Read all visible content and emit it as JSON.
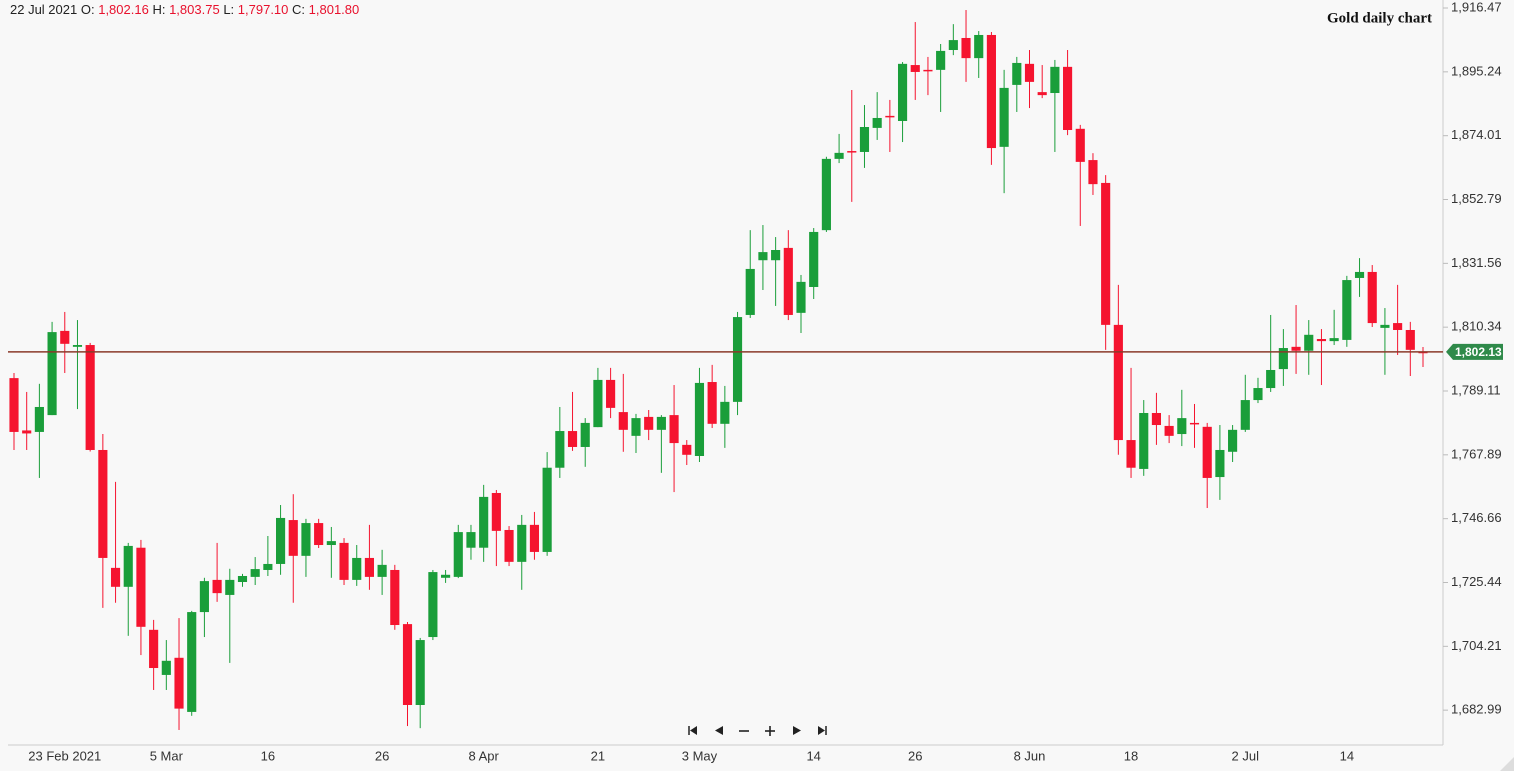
{
  "chart_data": {
    "type": "candlestick",
    "title": "Gold daily chart",
    "header": {
      "date": "22 Jul 2021",
      "fields": [
        {
          "name": "O:",
          "value": "1,802.16"
        },
        {
          "name": "H:",
          "value": "1,803.75"
        },
        {
          "name": "L:",
          "value": "1,797.10"
        },
        {
          "name": "C:",
          "value": "1,801.80"
        }
      ]
    },
    "categories": [
      null,
      null,
      null,
      null,
      "23 Feb 2021",
      null,
      null,
      null,
      null,
      null,
      null,
      null,
      "5 Mar",
      null,
      null,
      null,
      null,
      null,
      null,
      null,
      "16",
      null,
      null,
      null,
      null,
      null,
      null,
      null,
      null,
      "26",
      null,
      null,
      null,
      null,
      null,
      null,
      null,
      "8 Apr",
      null,
      null,
      null,
      null,
      null,
      null,
      null,
      null,
      "21",
      null,
      null,
      null,
      null,
      null,
      null,
      null,
      "3 May",
      null,
      null,
      null,
      null,
      null,
      null,
      null,
      null,
      "14",
      null,
      null,
      null,
      null,
      null,
      null,
      null,
      "26",
      null,
      null,
      null,
      null,
      null,
      null,
      null,
      null,
      "8 Jun",
      null,
      null,
      null,
      null,
      null,
      null,
      null,
      "18",
      null,
      null,
      null,
      null,
      null,
      null,
      null,
      null,
      "2 Jul",
      null,
      null,
      null,
      null,
      null,
      null,
      null,
      "14",
      null,
      null,
      null,
      null,
      null,
      null
    ],
    "open": [
      1793.4,
      1776,
      1775.5,
      1781.1,
      1809.1,
      1803.8,
      1804.4,
      1769.5,
      1730.3,
      1724.0,
      1737.0,
      1709.7,
      1694.7,
      1700.4,
      1682.4,
      1715.6,
      1726.3,
      1721.3,
      1725.6,
      1727.3,
      1729.6,
      1731.6,
      1746.2,
      1734.3,
      1745.2,
      1737.9,
      1738.6,
      1726.3,
      1733.6,
      1727.3,
      1729.6,
      1711.6,
      1684.7,
      1707.3,
      1727.0,
      1727.3,
      1737.0,
      1737.0,
      1755.2,
      1742.9,
      1732.3,
      1744.6,
      1735.6,
      1763.6,
      1775.8,
      1770.5,
      1777.1,
      1792.8,
      1782.1,
      1774.2,
      1780.5,
      1776.2,
      1781.1,
      1771.2,
      1767.5,
      1792.1,
      1778.2,
      1785.5,
      1814.4,
      1832.6,
      1832.6,
      1836.7,
      1815.1,
      1823.7,
      1842.6,
      1866.3,
      1868.9,
      1868.6,
      1876.6,
      1880.6,
      1878.9,
      1897.5,
      1895.9,
      1895.9,
      1902.5,
      1906.5,
      1899.8,
      1907.5,
      1870.3,
      1890.9,
      1897.9,
      1888.5,
      1888.2,
      1896.9,
      1876.3,
      1865.9,
      1858.3,
      1811.1,
      1772.8,
      1763.2,
      1781.8,
      1777.5,
      1774.8,
      1778.5,
      1777.2,
      1760.5,
      1768.9,
      1776.2,
      1786.1,
      1790.1,
      1796.4,
      1803.8,
      1802.5,
      1806.4,
      1805.7,
      1806.1,
      1826.7,
      1828.7,
      1810.1,
      1811.7,
      1809.4,
      1802.16
    ],
    "high": [
      1795.1,
      1788.8,
      1791.5,
      1812.1,
      1815.4,
      1812.7,
      1805.1,
      1774.8,
      1758.9,
      1738.6,
      1739.6,
      1713.0,
      1706.3,
      1713.6,
      1716.0,
      1727.0,
      1738.6,
      1730.0,
      1728.3,
      1733.9,
      1740.9,
      1751.2,
      1754.8,
      1746.6,
      1746.6,
      1743.9,
      1740.2,
      1737.9,
      1744.6,
      1736.3,
      1731.3,
      1712.3,
      1707.0,
      1729.6,
      1729.6,
      1744.6,
      1744.6,
      1757.9,
      1756.2,
      1744.2,
      1747.9,
      1748.9,
      1768.8,
      1783.8,
      1788.8,
      1780.1,
      1796.8,
      1796.8,
      1794.8,
      1781.5,
      1782.8,
      1781.1,
      1791.1,
      1772.8,
      1796.8,
      1797.8,
      1790.8,
      1815.4,
      1842.6,
      1844.3,
      1840.3,
      1842.6,
      1827.7,
      1843.3,
      1867.0,
      1874.6,
      1889.2,
      1884.2,
      1888.5,
      1885.9,
      1898.5,
      1911.8,
      1900.2,
      1904.5,
      1911.1,
      1915.8,
      1908.8,
      1908.5,
      1895.9,
      1900.2,
      1902.5,
      1897.5,
      1899.2,
      1902.5,
      1877.6,
      1868.2,
      1860.9,
      1824.4,
      1796.8,
      1786.1,
      1788.5,
      1781.1,
      1789.5,
      1784.8,
      1778.5,
      1777.8,
      1777.8,
      1794.5,
      1793.5,
      1814.4,
      1809.7,
      1817.7,
      1812.7,
      1809.7,
      1816.1,
      1827.4,
      1833.3,
      1831.0,
      1816.7,
      1824.4,
      1812.1,
      1803.75
    ],
    "low": [
      1769.5,
      1769.5,
      1760.2,
      1781.1,
      1795.1,
      1783.1,
      1769,
      1717.0,
      1718.7,
      1707.7,
      1701.3,
      1689.7,
      1689.7,
      1676.4,
      1681.1,
      1707.3,
      1719.0,
      1698.7,
      1724.0,
      1724.6,
      1727.6,
      1728.0,
      1718.7,
      1727.3,
      1736.9,
      1727.0,
      1724.6,
      1724.3,
      1723.0,
      1721.3,
      1709.7,
      1677.7,
      1677.0,
      1706.3,
      1725.3,
      1726.9,
      1733.0,
      1732.3,
      1730.9,
      1730.9,
      1723.0,
      1733.0,
      1734.3,
      1760.2,
      1769.2,
      1763.9,
      1777.1,
      1780.1,
      1768.9,
      1768.5,
      1772.8,
      1761.9,
      1755.5,
      1764.5,
      1765.5,
      1776.8,
      1770.2,
      1781.1,
      1813.4,
      1822.7,
      1817.4,
      1812.7,
      1808.4,
      1819.7,
      1842.0,
      1864.9,
      1852.0,
      1863.3,
      1872.6,
      1868.6,
      1871.9,
      1885.9,
      1887.5,
      1881.9,
      1900.8,
      1891.9,
      1893.2,
      1864.3,
      1854.9,
      1881.9,
      1883.2,
      1886.5,
      1868.6,
      1874.2,
      1844.0,
      1854.3,
      1802.8,
      1767.9,
      1760.2,
      1760.9,
      1771.2,
      1771.8,
      1770.8,
      1770.2,
      1750.2,
      1752.9,
      1765.5,
      1775.5,
      1785.1,
      1788.8,
      1790.8,
      1794.8,
      1794.5,
      1791.1,
      1804.4,
      1803.8,
      1820.4,
      1810.4,
      1794.5,
      1801.1,
      1794.1,
      1797.1
    ],
    "close": [
      1775.5,
      1775,
      1783.8,
      1808.7,
      1804.8,
      1804.4,
      1769.5,
      1733.6,
      1724.0,
      1737.6,
      1710.7,
      1697.0,
      1699.4,
      1683.5,
      1715.6,
      1725.9,
      1721.9,
      1726.3,
      1727.6,
      1729.9,
      1731.6,
      1746.9,
      1734.3,
      1745.2,
      1737.9,
      1739.2,
      1726.3,
      1733.6,
      1727.3,
      1731.3,
      1711.3,
      1684.7,
      1706.3,
      1728.9,
      1728.0,
      1742.2,
      1742.2,
      1753.9,
      1742.6,
      1732.3,
      1744.6,
      1735.6,
      1763.6,
      1775.8,
      1770.5,
      1778.5,
      1792.8,
      1783.5,
      1776.2,
      1780.1,
      1776.2,
      1780.5,
      1771.8,
      1767.9,
      1791.8,
      1778.2,
      1785.5,
      1813.7,
      1829.7,
      1835.3,
      1836.0,
      1814.4,
      1825.4,
      1842.0,
      1866.3,
      1868.3,
      1868.6,
      1876.9,
      1879.9,
      1880.3,
      1897.9,
      1895.2,
      1895.6,
      1902.2,
      1905.8,
      1899.8,
      1907.5,
      1869.9,
      1889.9,
      1898.2,
      1891.9,
      1887.5,
      1896.9,
      1875.9,
      1865.3,
      1857.9,
      1811.1,
      1772.8,
      1763.6,
      1781.8,
      1777.8,
      1774.2,
      1780.1,
      1778.2,
      1760.2,
      1769.5,
      1776.2,
      1786.1,
      1790.1,
      1796.1,
      1803.4,
      1802.5,
      1807.8,
      1805.7,
      1806.7,
      1826.0,
      1828.7,
      1811.7,
      1811.1,
      1809.4,
      1802.8,
      1801.8
    ],
    "up_color": "#1a9e3a",
    "down_color": "#f5142f",
    "ylim": [
      1671.4,
      1919.13
    ],
    "yticks": [
      {
        "value": 1682.99,
        "label": "1,682.99"
      },
      {
        "value": 1704.21,
        "label": "1,704.21"
      },
      {
        "value": 1725.44,
        "label": "1,725.44"
      },
      {
        "value": 1746.66,
        "label": "1,746.66"
      },
      {
        "value": 1767.89,
        "label": "1,767.89"
      },
      {
        "value": 1789.11,
        "label": "1,789.11"
      },
      {
        "value": 1810.34,
        "label": "1,810.34"
      },
      {
        "value": 1831.56,
        "label": "1,831.56"
      },
      {
        "value": 1852.79,
        "label": "1,852.79"
      },
      {
        "value": 1874.01,
        "label": "1,874.01"
      },
      {
        "value": 1895.24,
        "label": "1,895.24"
      },
      {
        "value": 1916.47,
        "label": "1,916.47"
      }
    ],
    "grid": false,
    "last_price": {
      "value": 1802.13,
      "label": "1,802.13",
      "color": "#8b3a2a",
      "label_color": "#2f8a4a"
    }
  }
}
